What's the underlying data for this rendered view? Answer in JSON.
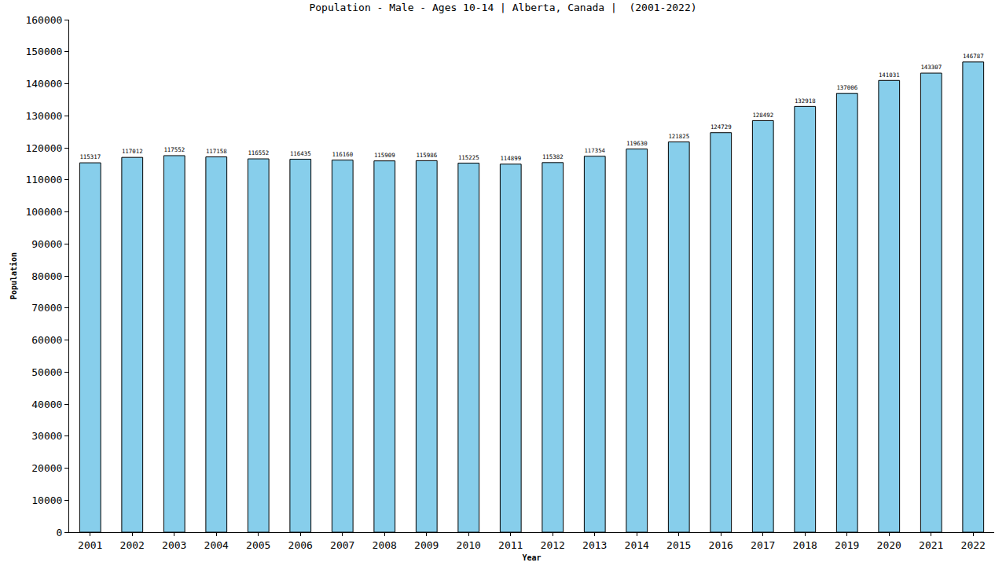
{
  "chart_data": {
    "type": "bar",
    "title": "Population - Male - Ages 10-14 | Alberta, Canada |  (2001-2022)",
    "x_label": "Year",
    "y_label": "Population",
    "categories": [
      "2001",
      "2002",
      "2003",
      "2004",
      "2005",
      "2006",
      "2007",
      "2008",
      "2009",
      "2010",
      "2011",
      "2012",
      "2013",
      "2014",
      "2015",
      "2016",
      "2017",
      "2018",
      "2019",
      "2020",
      "2021",
      "2022"
    ],
    "values": [
      115317,
      117012,
      117552,
      117158,
      116552,
      116435,
      116160,
      115909,
      115986,
      115225,
      114899,
      115382,
      117354,
      119630,
      121825,
      124729,
      128492,
      132918,
      137006,
      141031,
      143307,
      146787
    ],
    "color": "#87ceeb",
    "ylim": [
      0,
      160000
    ],
    "yticks": [
      0,
      10000,
      20000,
      30000,
      40000,
      50000,
      60000,
      70000,
      80000,
      90000,
      100000,
      110000,
      120000,
      130000,
      140000,
      150000,
      160000
    ],
    "grid": false,
    "data_labels": true
  }
}
